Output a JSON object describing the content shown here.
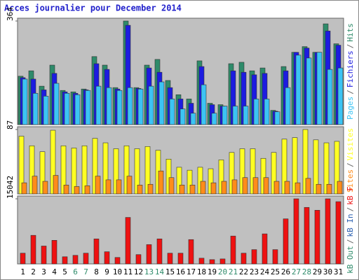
{
  "title": "Acces journalier pour December 2014",
  "chart_data": [
    {
      "type": "bar",
      "ylim": [
        0,
        364
      ],
      "yticks": [
        364
      ],
      "separator": "/",
      "series": [
        {
          "name": "Hits",
          "color": "#2e8b6a",
          "values": [
            170,
            189,
            135,
            209,
            120,
            115,
            125,
            239,
            209,
            130,
            364,
            130,
            209,
            229,
            155,
            105,
            90,
            224,
            75,
            70,
            214,
            219,
            189,
            199,
            50,
            204,
            254,
            274,
            254,
            354,
            284
          ]
        },
        {
          "name": "Fichiers",
          "color": "#1c1ce0",
          "values": [
            165,
            160,
            122,
            180,
            115,
            110,
            122,
            214,
            194,
            125,
            349,
            127,
            199,
            184,
            130,
            90,
            75,
            204,
            70,
            65,
            189,
            184,
            175,
            180,
            47,
            189,
            254,
            269,
            254,
            329,
            279
          ]
        },
        {
          "name": "Pages",
          "color": "#3cc4f4",
          "values": [
            160,
            110,
            100,
            145,
            110,
            105,
            120,
            135,
            130,
            120,
            130,
            125,
            135,
            150,
            90,
            55,
            40,
            140,
            40,
            65,
            65,
            65,
            90,
            90,
            45,
            130,
            244,
            234,
            254,
            194,
            199
          ]
        }
      ]
    },
    {
      "type": "bar",
      "ylim": [
        0,
        87
      ],
      "yticks": [
        87
      ],
      "separator": "/",
      "series": [
        {
          "name": "Visites",
          "color": "#ffff22",
          "values": [
            78,
            65,
            57,
            86,
            65,
            62,
            65,
            75,
            69,
            61,
            65,
            61,
            64,
            59,
            47,
            36,
            32,
            36,
            34,
            46,
            56,
            61,
            61,
            48,
            56,
            74,
            76,
            87,
            73,
            69,
            71
          ]
        },
        {
          "name": "Sites",
          "color": "#ff8c1a",
          "values": [
            15,
            24,
            17,
            25,
            12,
            10,
            11,
            24,
            19,
            19,
            24,
            12,
            13,
            31,
            22,
            12,
            12,
            17,
            15,
            17,
            19,
            22,
            22,
            22,
            17,
            17,
            15,
            21,
            13,
            13,
            17
          ]
        }
      ]
    },
    {
      "type": "bar",
      "ylim": [
        0,
        15042
      ],
      "yticks": [
        15042
      ],
      "separator": "/",
      "categories": [
        "1",
        "2",
        "3",
        "4",
        "5",
        "6",
        "7",
        "8",
        "9",
        "10",
        "11",
        "12",
        "13",
        "14",
        "15",
        "16",
        "17",
        "18",
        "19",
        "20",
        "21",
        "22",
        "23",
        "24",
        "25",
        "26",
        "27",
        "28",
        "29",
        "30",
        "31"
      ],
      "category_colors": [
        "#000",
        "#000",
        "#000",
        "#000",
        "#000",
        "#2e8b6a",
        "#2e8b6a",
        "#000",
        "#000",
        "#000",
        "#000",
        "#000",
        "#2e8b6a",
        "#2e8b6a",
        "#000",
        "#000",
        "#000",
        "#000",
        "#000",
        "#2e8b6a",
        "#2e8b6a",
        "#000",
        "#000",
        "#000",
        "#000",
        "#000",
        "#2e8b6a",
        "#2e8b6a",
        "#000",
        "#000",
        "#000"
      ],
      "series": [
        {
          "name": "kB F",
          "color": "#ee1111",
          "values": [
            2480,
            6600,
            4130,
            5450,
            1650,
            1980,
            2480,
            5780,
            2810,
            1490,
            10740,
            2150,
            4460,
            5780,
            2480,
            2480,
            5620,
            1320,
            990,
            1150,
            6440,
            2480,
            3300,
            6940,
            3300,
            10410,
            15042,
            13060,
            12400,
            15042,
            14380
          ]
        }
      ],
      "other_legend": [
        {
          "name": "kB In",
          "color": "#2a5fb0"
        },
        {
          "name": "kB Out",
          "color": "#2e8b6a"
        }
      ]
    }
  ]
}
